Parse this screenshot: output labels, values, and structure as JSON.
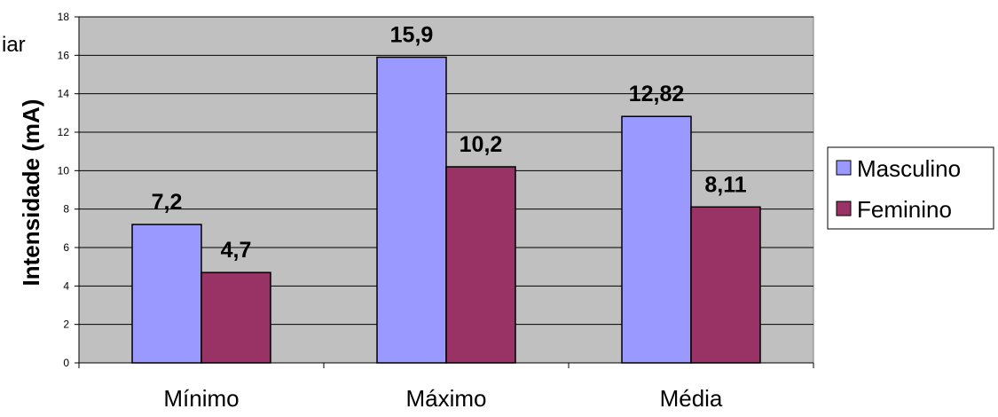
{
  "chart_data": {
    "type": "bar",
    "title": "",
    "title_fragment": "iar",
    "xlabel": "",
    "ylabel": "Intensidade (mA)",
    "ylim": [
      0,
      18
    ],
    "yticks": [
      "0",
      "2",
      "4",
      "6",
      "8",
      "10",
      "12",
      "14",
      "16",
      "18"
    ],
    "categories": [
      "Mínimo",
      "Máximo",
      "Média"
    ],
    "series": [
      {
        "name": "Masculino",
        "values": [
          7.2,
          15.9,
          12.82
        ],
        "labels": [
          "7,2",
          "15,9",
          "12,82"
        ],
        "color": "#9999FF"
      },
      {
        "name": "Feminino",
        "values": [
          4.7,
          10.2,
          8.11
        ],
        "labels": [
          "4,7",
          "10,2",
          "8,11"
        ],
        "color": "#993366"
      }
    ],
    "plot_background": "#C0C0C0",
    "grid": true,
    "legend": "right"
  }
}
